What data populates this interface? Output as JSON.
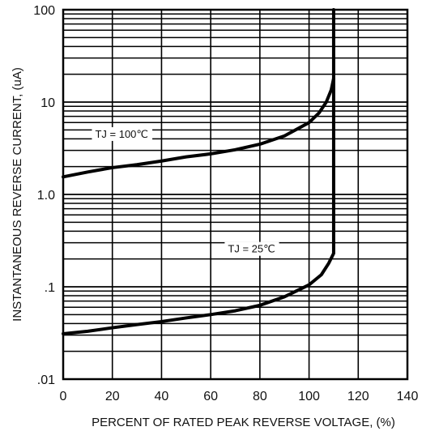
{
  "chart_data": {
    "type": "line",
    "title": "",
    "xlabel": "PERCENT OF RATED PEAK REVERSE VOLTAGE, (%)",
    "ylabel": "INSTANTANEOUS REVERSE CURRENT, (uA)",
    "xlim": [
      0,
      140
    ],
    "ylim": [
      0.01,
      100
    ],
    "yscale": "log",
    "grid": true,
    "x_ticks": [
      "0",
      "20",
      "40",
      "60",
      "80",
      "100",
      "120",
      "140"
    ],
    "x_tick_values": [
      0,
      20,
      40,
      60,
      80,
      100,
      120,
      140
    ],
    "y_ticks": [
      ".01",
      ".1",
      "1.0",
      "10",
      "100"
    ],
    "y_tick_values": [
      0.01,
      0.1,
      1,
      10,
      100
    ],
    "series": [
      {
        "name": "TJ = 100℃",
        "x": [
          0,
          10,
          20,
          30,
          40,
          50,
          60,
          70,
          80,
          90,
          100,
          104,
          107,
          109,
          110
        ],
        "y": [
          1.55,
          1.75,
          1.95,
          2.1,
          2.3,
          2.55,
          2.75,
          3.05,
          3.5,
          4.3,
          6.0,
          7.6,
          10.0,
          13.5,
          18.0
        ]
      },
      {
        "name": "TJ = 25℃",
        "x": [
          0,
          10,
          20,
          30,
          40,
          50,
          60,
          70,
          80,
          90,
          100,
          105,
          108,
          110,
          110,
          110
        ],
        "y": [
          0.031,
          0.033,
          0.036,
          0.039,
          0.042,
          0.046,
          0.05,
          0.055,
          0.063,
          0.078,
          0.105,
          0.135,
          0.18,
          0.23,
          2.0,
          100
        ]
      }
    ]
  }
}
